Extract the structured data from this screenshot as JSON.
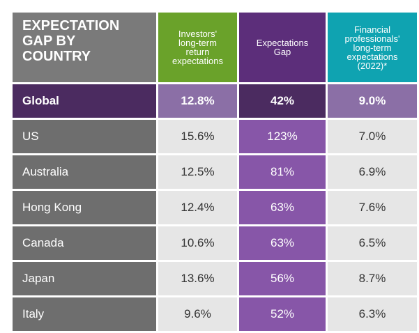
{
  "chart_data": {
    "type": "table",
    "title": "EXPECTATION\nGAP BY\nCOUNTRY",
    "columns": [
      "Investors'\nlong-term\nreturn\nexpectations",
      "Expectations\nGap",
      "Financial\nprofessionals'\nlong-term\nexpectations\n(2022)*"
    ],
    "global": {
      "label": "Global",
      "investors": "12.8%",
      "gap": "42%",
      "professionals": "9.0%"
    },
    "rows": [
      {
        "country": "US",
        "investors": "15.6%",
        "gap": "123%",
        "professionals": "7.0%"
      },
      {
        "country": "Australia",
        "investors": "12.5%",
        "gap": "81%",
        "professionals": "6.9%"
      },
      {
        "country": "Hong Kong",
        "investors": "12.4%",
        "gap": "63%",
        "professionals": "7.6%"
      },
      {
        "country": "Canada",
        "investors": "10.6%",
        "gap": "63%",
        "professionals": "6.5%"
      },
      {
        "country": "Japan",
        "investors": "13.6%",
        "gap": "56%",
        "professionals": "8.7%"
      },
      {
        "country": "Italy",
        "investors": "9.6%",
        "gap": "52%",
        "professionals": "6.3%"
      }
    ]
  }
}
